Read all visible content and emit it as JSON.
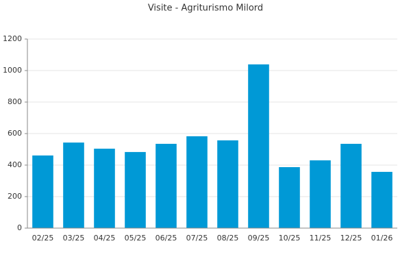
{
  "chart_data": {
    "type": "bar",
    "title": "Visite - Agriturismo Milord",
    "categories": [
      "02/25",
      "03/25",
      "04/25",
      "05/25",
      "06/25",
      "07/25",
      "08/25",
      "09/25",
      "10/25",
      "11/25",
      "12/25",
      "01/26"
    ],
    "values": [
      461,
      543,
      504,
      483,
      535,
      583,
      557,
      1039,
      387,
      430,
      535,
      357
    ],
    "color": "#0099d6",
    "ylim": [
      0,
      1200
    ],
    "yticks": [
      0,
      200,
      400,
      600,
      800,
      1000,
      1200
    ],
    "grid": true
  }
}
